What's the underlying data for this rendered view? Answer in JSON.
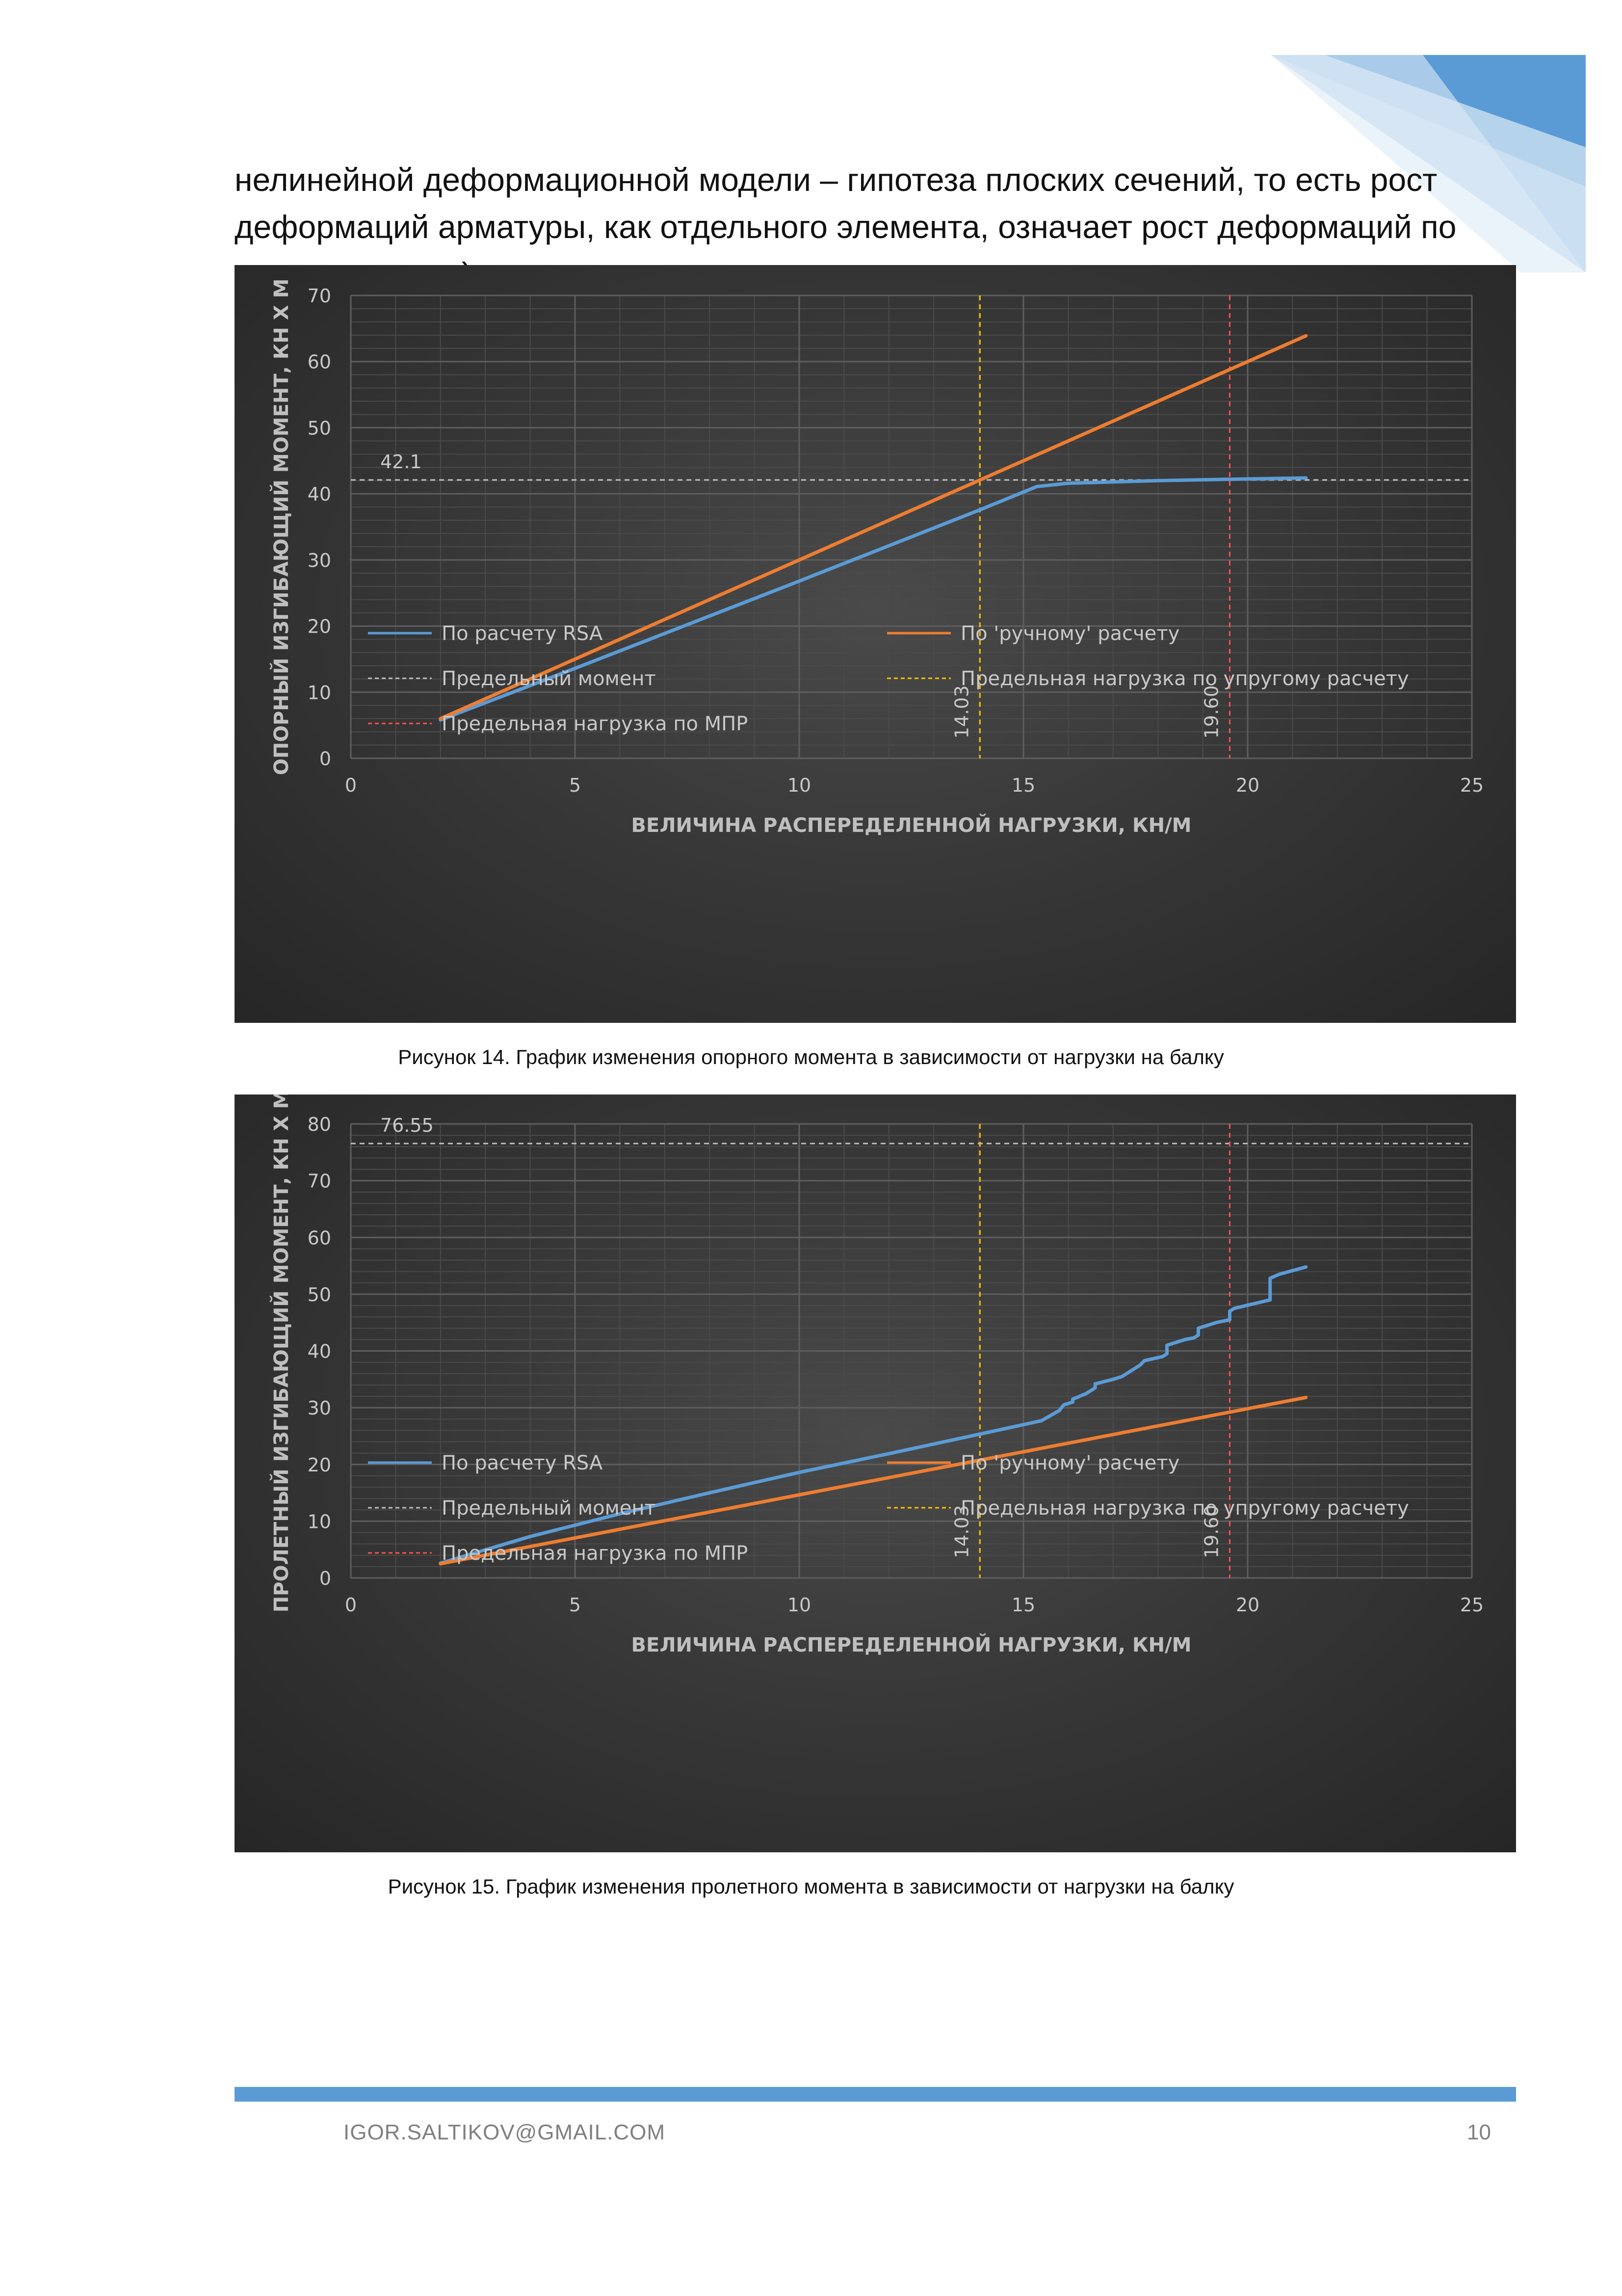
{
  "page": {
    "intro_text": "нелинейной деформационной модели – гипотеза плоских сечений, то есть рост деформаций арматуры, как отдельного элемента, означает рост деформаций по всему сечению).",
    "footer_email": "IGOR.SALTIKOV@GMAIL.COM",
    "page_number": "10",
    "accent_color": "#5b9bd5"
  },
  "figures": [
    {
      "caption": "Рисунок 14. График изменения опорного момента в зависимости от нагрузки на балку"
    },
    {
      "caption": "Рисунок 15. График изменения пролетного момента в зависимости от нагрузки на балку"
    }
  ],
  "chart_data": [
    {
      "type": "line",
      "title": "",
      "xlabel": "ВЕЛИЧИНА РАСПЕРЕДЕЛЕННОЙ НАГРУЗКИ, КН/М",
      "ylabel": "ОПОРНЫЙ ИЗГИБАЮЩИЙ МОМЕНТ, КН Х М",
      "xlim": [
        0,
        25
      ],
      "ylim": [
        0,
        70
      ],
      "xticks": [
        0,
        5,
        10,
        15,
        20,
        25
      ],
      "yticks": [
        0,
        10,
        20,
        30,
        40,
        50,
        60,
        70
      ],
      "grid": true,
      "legend_position": "bottom",
      "series": [
        {
          "name": "По расчету RSA",
          "color": "#5b9bd5",
          "x": [
            2,
            5,
            10,
            14,
            15.3,
            16,
            18,
            19.6,
            21.3
          ],
          "y": [
            5.8,
            13.6,
            26.8,
            37.5,
            41.1,
            41.6,
            42.0,
            42.2,
            42.4
          ]
        },
        {
          "name": "По 'ручному' расчету",
          "color": "#ed7d31",
          "x": [
            2,
            21.3
          ],
          "y": [
            6.0,
            63.9
          ]
        }
      ],
      "reference_lines": [
        {
          "name": "Предельный момент",
          "orientation": "horizontal",
          "value": 42.1,
          "label": "42.1",
          "color": "#bfbfbf"
        },
        {
          "name": "Предельная нагрузка по упругому расчету",
          "orientation": "vertical",
          "value": 14.03,
          "label": "14.03",
          "color": "#ffc000"
        },
        {
          "name": "Предельная нагрузка по МПР",
          "orientation": "vertical",
          "value": 19.6,
          "label": "19.60",
          "color": "#ff5050"
        }
      ]
    },
    {
      "type": "line",
      "title": "",
      "xlabel": "ВЕЛИЧИНА РАСПЕРЕДЕЛЕННОЙ НАГРУЗКИ, КН/М",
      "ylabel": "ПРОЛЕТНЫЙ ИЗГИБАЮЩИЙ МОМЕНТ, КН Х М",
      "xlim": [
        0,
        25
      ],
      "ylim": [
        0,
        80
      ],
      "xticks": [
        0,
        5,
        10,
        15,
        20,
        25
      ],
      "yticks": [
        0,
        10,
        20,
        30,
        40,
        50,
        60,
        70,
        80
      ],
      "grid": true,
      "legend_position": "bottom",
      "series": [
        {
          "name": "По расчету RSA",
          "color": "#5b9bd5",
          "x": [
            2,
            4,
            6,
            8,
            10,
            12,
            14,
            15.4,
            15.8,
            15.9,
            16.1,
            16.1,
            16.4,
            16.5,
            16.6,
            16.6,
            17,
            17.2,
            17.4,
            17.5,
            17.6,
            17.7,
            18.1,
            18.2,
            18.2,
            18.6,
            18.8,
            18.9,
            18.9,
            19.3,
            19.6,
            19.6,
            19.7,
            20.5,
            20.5,
            20.7,
            21.3
          ],
          "y": [
            2.6,
            7.3,
            11.3,
            15.0,
            18.6,
            21.9,
            25.3,
            27.7,
            29.5,
            30.5,
            31.0,
            31.5,
            32.5,
            33.0,
            33.5,
            34.2,
            35.0,
            35.5,
            36.5,
            37.0,
            37.5,
            38.3,
            39.0,
            39.5,
            41.0,
            42.0,
            42.3,
            42.8,
            44.0,
            45.0,
            45.5,
            47.0,
            47.5,
            49.0,
            52.8,
            53.5,
            54.8
          ]
        },
        {
          "name": "По 'ручному' расчету",
          "color": "#ed7d31",
          "x": [
            2,
            21.3
          ],
          "y": [
            2.5,
            31.8
          ]
        }
      ],
      "reference_lines": [
        {
          "name": "Предельный момент",
          "orientation": "horizontal",
          "value": 76.55,
          "label": "76.55",
          "color": "#bfbfbf"
        },
        {
          "name": "Предельная нагрузка по упругому расчету",
          "orientation": "vertical",
          "value": 14.03,
          "label": "14.03",
          "color": "#ffc000"
        },
        {
          "name": "Предельная нагрузка по МПР",
          "orientation": "vertical",
          "value": 19.6,
          "label": "19.60",
          "color": "#ff5050"
        }
      ]
    }
  ]
}
